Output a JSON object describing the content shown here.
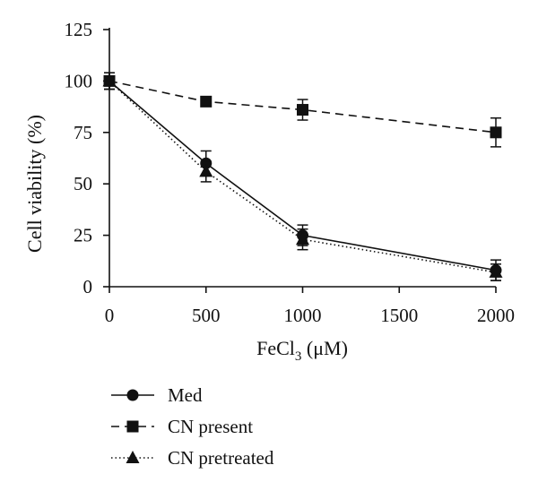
{
  "chart_data": {
    "type": "line",
    "xlabel_main": "FeCl",
    "xlabel_sub": "3",
    "xlabel_unit": " (μM)",
    "ylabel": "Cell viability (%)",
    "x": [
      0,
      500,
      1000,
      2000
    ],
    "xlim": [
      0,
      2000
    ],
    "ylim": [
      0,
      125
    ],
    "xticks": [
      0,
      500,
      1000,
      1500,
      2000
    ],
    "yticks": [
      0,
      25,
      50,
      75,
      100,
      125
    ],
    "legend_position": "bottom-left",
    "grid": false,
    "series": [
      {
        "name": "Med",
        "values": [
          100,
          60,
          25,
          8
        ],
        "errors": [
          4,
          6,
          5,
          5
        ],
        "marker": "circle",
        "line": "solid"
      },
      {
        "name": "CN present",
        "values": [
          100,
          90,
          86,
          75
        ],
        "errors": [
          4,
          2,
          5,
          7
        ],
        "marker": "square",
        "line": "dashed"
      },
      {
        "name": "CN pretreated",
        "values": [
          100,
          56,
          23,
          7
        ],
        "errors": [
          4,
          5,
          5,
          4
        ],
        "marker": "triangle",
        "line": "dotted"
      }
    ],
    "colors": {
      "ink": "#111111"
    }
  }
}
